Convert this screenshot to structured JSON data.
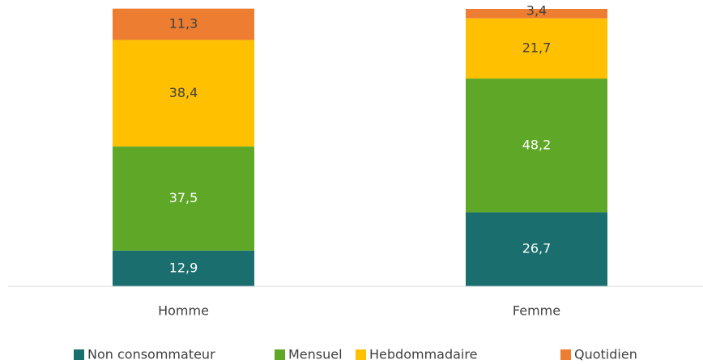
{
  "chart_data": {
    "type": "stacked_bar",
    "categories": [
      "Homme",
      "Femme"
    ],
    "series": [
      {
        "name": "Non consommateur",
        "color": "#1a6e6e",
        "values": [
          12.9,
          26.7
        ],
        "value_labels": [
          "12,9",
          "26,7"
        ]
      },
      {
        "name": "Mensuel",
        "color": "#5fa827",
        "values": [
          37.5,
          48.2
        ],
        "value_labels": [
          "37,5",
          "48,2"
        ]
      },
      {
        "name": "Hebdommadaire",
        "color": "#ffc000",
        "values": [
          38.4,
          21.7
        ],
        "value_labels": [
          "38,4",
          "21,7"
        ]
      },
      {
        "name": "Quotidien",
        "color": "#ed7d31",
        "values": [
          11.3,
          3.4
        ],
        "value_labels": [
          "11,3",
          "3,4"
        ]
      }
    ],
    "ylim": [
      0,
      100
    ],
    "legend": "bottom"
  }
}
